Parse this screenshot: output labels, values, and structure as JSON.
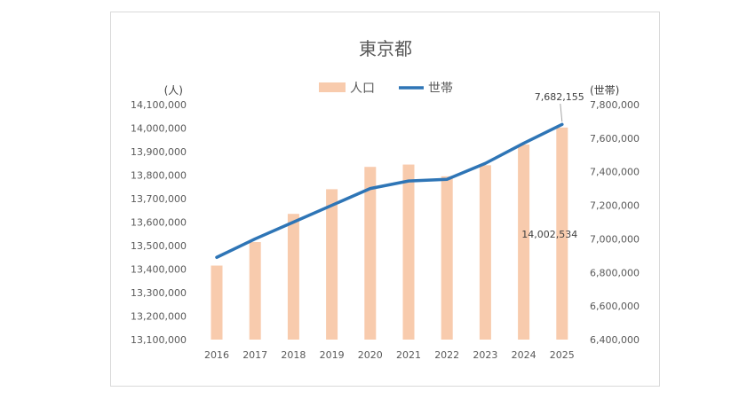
{
  "chart_data": {
    "type": "bar",
    "title": "東京都",
    "categories": [
      "2016",
      "2017",
      "2018",
      "2019",
      "2020",
      "2021",
      "2022",
      "2023",
      "2024",
      "2025"
    ],
    "series": [
      {
        "name": "人口",
        "type": "bar",
        "axis": "left",
        "color": "#f8cbad",
        "values": [
          13415000,
          13515000,
          13635000,
          13740000,
          13835000,
          13845000,
          13795000,
          13842000,
          13930000,
          14002534
        ]
      },
      {
        "name": "世帯",
        "type": "line",
        "axis": "right",
        "color": "#2e75b6",
        "values": [
          6890000,
          7000000,
          7100000,
          7200000,
          7300000,
          7345000,
          7355000,
          7450000,
          7570000,
          7682155
        ]
      }
    ],
    "y_left": {
      "unit": "(人)",
      "ylim": [
        13100000,
        14100000
      ],
      "ticks": [
        "13,100,000",
        "13,200,000",
        "13,300,000",
        "13,400,000",
        "13,500,000",
        "13,600,000",
        "13,700,000",
        "13,800,000",
        "13,900,000",
        "14,000,000",
        "14,100,000"
      ]
    },
    "y_right": {
      "unit": "(世帯)",
      "ylim": [
        6400000,
        7800000
      ],
      "ticks": [
        "6,400,000",
        "6,600,000",
        "6,800,000",
        "7,000,000",
        "7,200,000",
        "7,400,000",
        "7,600,000",
        "7,800,000"
      ]
    },
    "data_labels": {
      "bar_last": "14,002,534",
      "line_last": "7,682,155"
    },
    "legend_position": "top",
    "grid": false
  }
}
